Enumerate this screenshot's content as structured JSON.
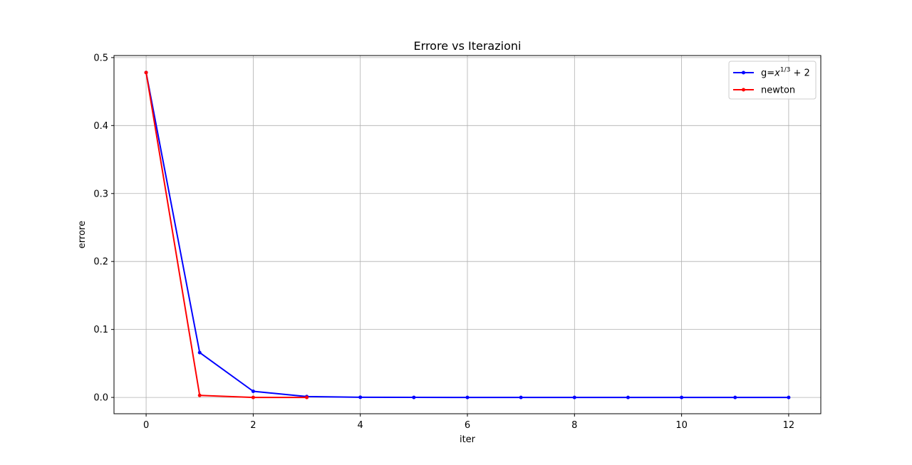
{
  "chart_data": {
    "type": "line",
    "title": "Errore vs Iterazioni",
    "xlabel": "iter",
    "ylabel": "errore",
    "xlim": [
      -0.6,
      12.6
    ],
    "ylim": [
      -0.024,
      0.503
    ],
    "xticks": [
      0,
      2,
      4,
      6,
      8,
      10,
      12
    ],
    "xtick_labels": [
      "0",
      "2",
      "4",
      "6",
      "8",
      "10",
      "12"
    ],
    "yticks": [
      0.0,
      0.1,
      0.2,
      0.3,
      0.4,
      0.5
    ],
    "ytick_labels": [
      "0.0",
      "0.1",
      "0.2",
      "0.3",
      "0.4",
      "0.5"
    ],
    "grid": true,
    "legend_position": "top-right",
    "series": [
      {
        "name_text": "g=",
        "name_math_base": "x",
        "name_math_sup": "1/3",
        "name_math_tail": " + 2",
        "color": "#0000ff",
        "marker": "circle",
        "x": [
          0,
          1,
          2,
          3,
          4,
          5,
          6,
          7,
          8,
          9,
          10,
          11,
          12
        ],
        "y": [
          0.478,
          0.066,
          0.009,
          0.0013,
          0.0002,
          3e-05,
          5e-06,
          8e-07,
          1e-07,
          2e-08,
          0.0,
          0.0,
          0.0
        ]
      },
      {
        "name": "newton",
        "color": "#ff0000",
        "marker": "circle",
        "x": [
          0,
          1,
          2,
          3
        ],
        "y": [
          0.478,
          0.003,
          1e-05,
          0.0
        ]
      }
    ]
  }
}
